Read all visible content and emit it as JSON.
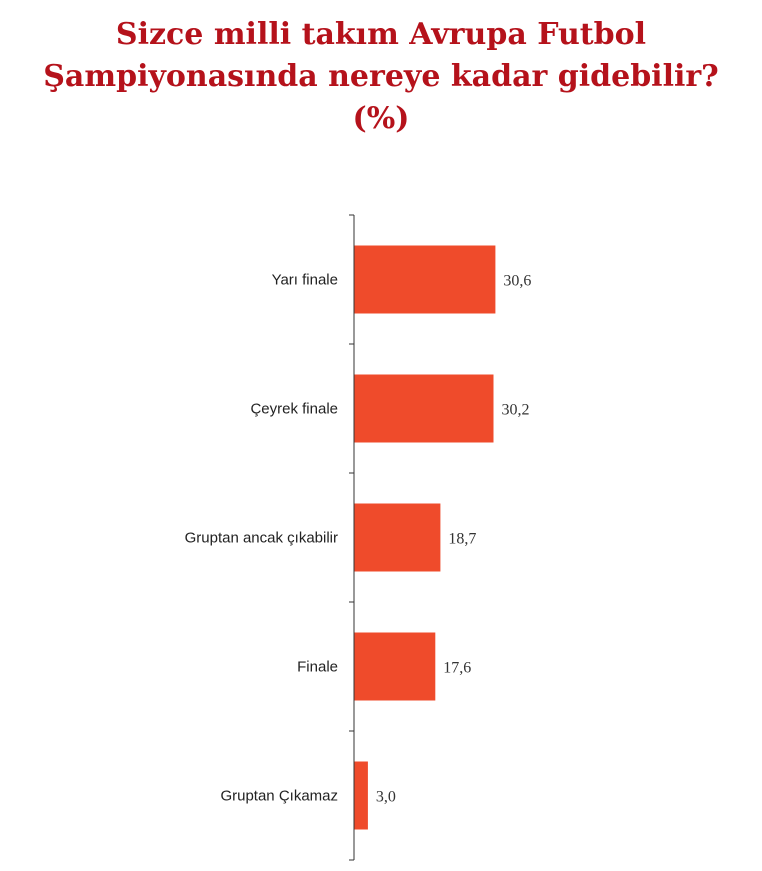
{
  "title": {
    "line1": "Sizce milli takım Avrupa Futbol",
    "line2": "Şampiyonasında nereye kadar gidebilir?",
    "line3": "(%)"
  },
  "colors": {
    "title": "#b5121b",
    "bar": "#ef4b2b",
    "axis": "#333333",
    "text": "#222222"
  },
  "chart_data": {
    "type": "bar",
    "orientation": "horizontal",
    "categories": [
      "Yarı finale",
      "Çeyrek finale",
      "Gruptan ancak çıkabilir",
      "Finale",
      "Gruptan Çıkamaz"
    ],
    "values": [
      30.6,
      30.2,
      18.7,
      17.6,
      3.0
    ],
    "data_labels": [
      "30,6",
      "30,2",
      "18,7",
      "17,6",
      "3,0"
    ],
    "title": "Sizce milli takım Avrupa Futbol Şampiyonasında nereye kadar gidebilir? (%)",
    "xlabel": "",
    "ylabel": "",
    "xlim": [
      0,
      100
    ],
    "grid": false,
    "legend": "none"
  }
}
